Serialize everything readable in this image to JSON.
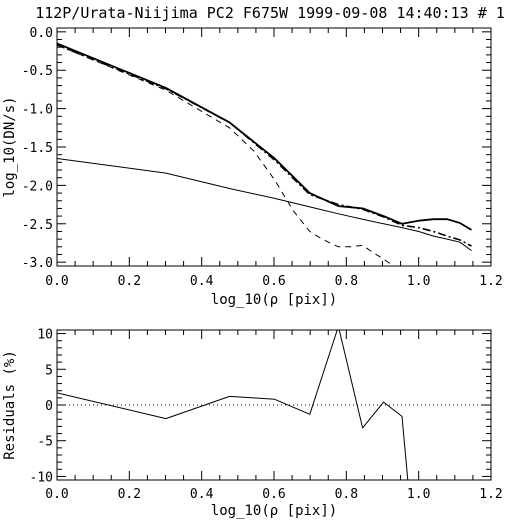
{
  "header": {
    "title": "112P/Urata-Niijima PC2 F675W 1999-09-08 14:40:13 # 1"
  },
  "chart_data": [
    {
      "type": "line",
      "title": "112P/Urata-Niijima PC2 F675W 1999-09-08 14:40:13 # 1",
      "xlabel": "log_10(ρ [pix])",
      "ylabel": "log_10(DN/s)",
      "xlim": [
        0.0,
        1.2
      ],
      "ylim": [
        -3.05,
        0.05
      ],
      "xticks": [
        "0.0",
        "0.2",
        "0.4",
        "0.6",
        "0.8",
        "1.0",
        "1.2"
      ],
      "yticks": [
        "0.0",
        "-0.5",
        "-1.0",
        "-1.5",
        "-2.0",
        "-2.5",
        "-3.0"
      ],
      "grid": false,
      "series": [
        {
          "style": "solid-thick",
          "points": [
            [
              0.0,
              -0.15
            ],
            [
              0.301,
              -0.73
            ],
            [
              0.477,
              -1.18
            ],
            [
              0.602,
              -1.65
            ],
            [
              0.699,
              -2.1
            ],
            [
              0.778,
              -2.27
            ],
            [
              0.845,
              -2.3
            ],
            [
              0.903,
              -2.4
            ],
            [
              0.954,
              -2.5
            ],
            [
              1.0,
              -2.46
            ],
            [
              1.041,
              -2.44
            ],
            [
              1.079,
              -2.44
            ],
            [
              1.114,
              -2.49
            ],
            [
              1.146,
              -2.58
            ]
          ]
        },
        {
          "style": "dashed",
          "points": [
            [
              0.0,
              -0.17
            ],
            [
              0.301,
              -0.76
            ],
            [
              0.477,
              -1.25
            ],
            [
              0.544,
              -1.55
            ],
            [
              0.602,
              -1.93
            ],
            [
              0.653,
              -2.33
            ],
            [
              0.699,
              -2.6
            ],
            [
              0.733,
              -2.7
            ],
            [
              0.778,
              -2.8
            ],
            [
              0.813,
              -2.8
            ],
            [
              0.845,
              -2.78
            ],
            [
              0.875,
              -2.88
            ],
            [
              0.903,
              -2.96
            ],
            [
              0.93,
              -3.05
            ]
          ]
        },
        {
          "style": "solid-thin",
          "points": [
            [
              0.0,
              -1.65
            ],
            [
              0.301,
              -1.84
            ],
            [
              0.477,
              -2.04
            ],
            [
              0.602,
              -2.17
            ],
            [
              0.699,
              -2.28
            ],
            [
              0.778,
              -2.37
            ],
            [
              0.845,
              -2.44
            ],
            [
              0.903,
              -2.5
            ],
            [
              0.954,
              -2.55
            ],
            [
              1.0,
              -2.6
            ],
            [
              1.041,
              -2.66
            ],
            [
              1.079,
              -2.7
            ],
            [
              1.114,
              -2.74
            ],
            [
              1.146,
              -2.85
            ]
          ]
        },
        {
          "style": "dash-dot",
          "points": [
            [
              0.0,
              -0.17
            ],
            [
              0.301,
              -0.74
            ],
            [
              0.477,
              -1.18
            ],
            [
              0.602,
              -1.67
            ],
            [
              0.699,
              -2.12
            ],
            [
              0.778,
              -2.25
            ],
            [
              0.845,
              -2.31
            ],
            [
              0.903,
              -2.41
            ],
            [
              0.954,
              -2.52
            ],
            [
              1.0,
              -2.55
            ],
            [
              1.041,
              -2.6
            ],
            [
              1.079,
              -2.66
            ],
            [
              1.114,
              -2.71
            ],
            [
              1.146,
              -2.79
            ]
          ]
        }
      ]
    },
    {
      "type": "line",
      "xlabel": "log_10(ρ [pix])",
      "ylabel": "Residuals (%)",
      "xlim": [
        0.0,
        1.2
      ],
      "ylim": [
        -10.5,
        10.5
      ],
      "xticks": [
        "0.0",
        "0.2",
        "0.4",
        "0.6",
        "0.8",
        "1.0",
        "1.2"
      ],
      "yticks": [
        "10",
        "5",
        "0",
        "-5",
        "-10"
      ],
      "grid": false,
      "reference_line": {
        "y": 0,
        "style": "dotted"
      },
      "series": [
        {
          "style": "solid-thin",
          "points": [
            [
              0.0,
              1.7
            ],
            [
              0.301,
              -1.9
            ],
            [
              0.477,
              1.2
            ],
            [
              0.544,
              1.0
            ],
            [
              0.602,
              0.8
            ],
            [
              0.699,
              -1.3
            ],
            [
              0.778,
              11.0
            ],
            [
              0.845,
              -3.2
            ],
            [
              0.903,
              0.4
            ],
            [
              0.954,
              -1.6
            ],
            [
              0.97,
              -10.5
            ]
          ]
        }
      ]
    }
  ]
}
